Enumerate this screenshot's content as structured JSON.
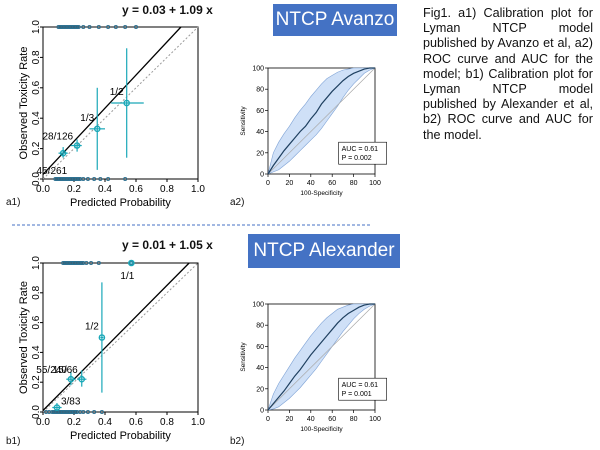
{
  "caption": "Fig1. a1) Calibration plot for Lyman NTCP model published by Avanzo et al, a2) ROC curve and AUC for the model; b1) Calibration plot for Lyman NTCP model published by Alexander et al, b2) ROC curve and AUC for the model.",
  "panels": {
    "a": {
      "title": "NTCP Avanzo",
      "equation": "y = 0.03 + 1.09 x",
      "calib_label": "a1)",
      "roc_label": "a2)"
    },
    "b": {
      "title": "NTCP Alexander",
      "equation": "y = 0.01 + 1.05 x",
      "calib_label": "b1)",
      "roc_label": "b2)"
    }
  },
  "colors": {
    "title_bg": "#4472c4",
    "points": "#1aa8b8",
    "rug": "#2a6f90",
    "roc_band": "#cfe0f7",
    "roc_line": "#1f4060",
    "divider": "#4472c4"
  },
  "chart_data": [
    {
      "id": "a1",
      "type": "scatter",
      "xlabel": "Predicted Probability",
      "ylabel": "Observed Toxicity Rate",
      "xlim": [
        0,
        1
      ],
      "ylim": [
        0,
        1
      ],
      "xticks": [
        "0.0",
        "0.2",
        "0.4",
        "0.6",
        "0.8",
        "1.0"
      ],
      "yticks": [
        "0.0",
        "0.2",
        "0.4",
        "0.6",
        "0.8",
        "1.0"
      ],
      "fit": {
        "intercept": 0.03,
        "slope": 1.09
      },
      "points": [
        {
          "x": 0.13,
          "y": 0.17,
          "xerr": [
            0.1,
            0.16
          ],
          "yerr": [
            0.14,
            0.21
          ],
          "label": "45/261"
        },
        {
          "x": 0.22,
          "y": 0.22,
          "xerr": [
            0.18,
            0.25
          ],
          "yerr": [
            0.18,
            0.26
          ],
          "label": "28/126"
        },
        {
          "x": 0.35,
          "y": 0.33,
          "xerr": [
            0.3,
            0.4
          ],
          "yerr": [
            0.06,
            0.6
          ],
          "label": "1/3"
        },
        {
          "x": 0.54,
          "y": 0.5,
          "xerr": [
            0.44,
            0.65
          ],
          "yerr": [
            0.14,
            0.86
          ],
          "label": "1/2"
        }
      ],
      "rug_x0": [
        0.08,
        0.09,
        0.1,
        0.11,
        0.12,
        0.13,
        0.14,
        0.15,
        0.16,
        0.17,
        0.18,
        0.19,
        0.2,
        0.21,
        0.22,
        0.23,
        0.24,
        0.26,
        0.29,
        0.33,
        0.37,
        0.42,
        0.53
      ],
      "rug_x1": [
        0.1,
        0.11,
        0.12,
        0.13,
        0.14,
        0.15,
        0.16,
        0.17,
        0.18,
        0.19,
        0.2,
        0.21,
        0.22,
        0.23,
        0.26,
        0.3,
        0.36,
        0.42,
        0.47,
        0.53,
        0.6
      ]
    },
    {
      "id": "a2",
      "type": "line",
      "xlabel": "100-Specificity",
      "ylabel": "Sensitivity",
      "xlim": [
        0,
        100
      ],
      "ylim": [
        0,
        100
      ],
      "xticks": [
        "0",
        "20",
        "40",
        "60",
        "80",
        "100"
      ],
      "yticks": [
        "0",
        "20",
        "40",
        "60",
        "80",
        "100"
      ],
      "auc_text": "AUC = 0.61",
      "p_text": "P = 0.002",
      "x": [
        0,
        5,
        10,
        15,
        20,
        25,
        30,
        35,
        40,
        45,
        50,
        55,
        60,
        65,
        70,
        75,
        80,
        85,
        90,
        95,
        100
      ],
      "y": [
        0,
        8,
        15,
        22,
        28,
        34,
        40,
        45,
        52,
        58,
        66,
        72,
        78,
        83,
        88,
        92,
        95,
        97,
        99,
        100,
        100
      ],
      "upper": [
        0,
        20,
        30,
        38,
        45,
        53,
        60,
        66,
        73,
        79,
        85,
        90,
        93,
        96,
        98,
        99,
        100,
        100,
        100,
        100,
        100
      ],
      "lower": [
        0,
        2,
        4,
        8,
        12,
        17,
        22,
        27,
        32,
        37,
        43,
        50,
        57,
        64,
        72,
        79,
        85,
        90,
        95,
        98,
        100
      ]
    },
    {
      "id": "b1",
      "type": "scatter",
      "xlabel": "Predicted Probability",
      "ylabel": "Observed Toxicity Rate",
      "xlim": [
        0,
        1
      ],
      "ylim": [
        0,
        1
      ],
      "xticks": [
        "0.0",
        "0.2",
        "0.4",
        "0.6",
        "0.8",
        "1.0"
      ],
      "yticks": [
        "0.0",
        "0.2",
        "0.4",
        "0.6",
        "0.8",
        "1.0"
      ],
      "fit": {
        "intercept": 0.01,
        "slope": 1.05
      },
      "points": [
        {
          "x": 0.09,
          "y": 0.03,
          "xerr": [
            0.06,
            0.12
          ],
          "yerr": [
            0.01,
            0.06
          ],
          "label": "3/83"
        },
        {
          "x": 0.18,
          "y": 0.22,
          "xerr": [
            0.15,
            0.21
          ],
          "yerr": [
            0.18,
            0.27
          ],
          "label": "55/240"
        },
        {
          "x": 0.25,
          "y": 0.22,
          "xerr": [
            0.22,
            0.28
          ],
          "yerr": [
            0.17,
            0.28
          ],
          "label": "15/66"
        },
        {
          "x": 0.38,
          "y": 0.5,
          "xerr": [
            0.37,
            0.39
          ],
          "yerr": [
            0.13,
            0.87
          ],
          "label": "1/2"
        },
        {
          "x": 0.57,
          "y": 1.0,
          "xerr": [
            0.56,
            0.58
          ],
          "yerr": [
            1.0,
            1.0
          ],
          "label": "1/1"
        }
      ],
      "rug_x0": [
        0.02,
        0.04,
        0.06,
        0.07,
        0.08,
        0.09,
        0.1,
        0.11,
        0.12,
        0.13,
        0.14,
        0.15,
        0.16,
        0.17,
        0.18,
        0.19,
        0.2,
        0.21,
        0.22,
        0.24,
        0.26,
        0.29,
        0.33,
        0.38
      ],
      "rug_x1": [
        0.13,
        0.14,
        0.15,
        0.16,
        0.17,
        0.18,
        0.19,
        0.2,
        0.21,
        0.22,
        0.23,
        0.24,
        0.25,
        0.26,
        0.28,
        0.31,
        0.36,
        0.57
      ]
    },
    {
      "id": "b2",
      "type": "line",
      "xlabel": "100-Specificity",
      "ylabel": "Sensitivity",
      "xlim": [
        0,
        100
      ],
      "ylim": [
        0,
        100
      ],
      "xticks": [
        "0",
        "20",
        "40",
        "60",
        "80",
        "100"
      ],
      "yticks": [
        "0",
        "20",
        "40",
        "60",
        "80",
        "100"
      ],
      "auc_text": "AUC = 0.61",
      "p_text": "P = 0.001",
      "x": [
        0,
        5,
        10,
        15,
        20,
        25,
        30,
        35,
        40,
        45,
        50,
        55,
        60,
        65,
        70,
        75,
        80,
        85,
        90,
        95,
        100
      ],
      "y": [
        0,
        6,
        12,
        18,
        25,
        32,
        38,
        45,
        52,
        58,
        64,
        70,
        76,
        82,
        87,
        91,
        94,
        97,
        99,
        100,
        100
      ],
      "upper": [
        0,
        15,
        25,
        33,
        41,
        49,
        56,
        63,
        70,
        76,
        82,
        87,
        91,
        95,
        97,
        99,
        100,
        100,
        100,
        100,
        100
      ],
      "lower": [
        0,
        1,
        3,
        7,
        11,
        16,
        21,
        27,
        33,
        39,
        46,
        53,
        60,
        67,
        74,
        80,
        86,
        91,
        95,
        98,
        100
      ]
    }
  ]
}
